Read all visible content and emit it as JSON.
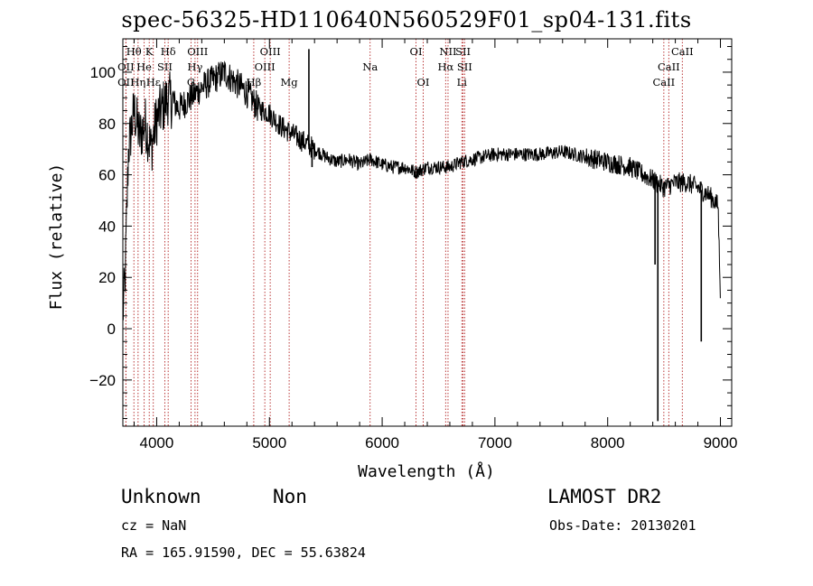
{
  "chart_data": {
    "type": "line",
    "title": "spec-56325-HD110640N560529F01_sp04-131.fits",
    "xlabel": "Wavelength (Å)",
    "ylabel": "Flux (relative)",
    "xlim": [
      3700,
      9100
    ],
    "ylim": [
      -38,
      113
    ],
    "x_ticks": [
      4000,
      5000,
      6000,
      7000,
      8000,
      9000
    ],
    "y_ticks": [
      -20,
      0,
      20,
      40,
      60,
      80,
      100
    ],
    "x_tick_labels": [
      "4000",
      "5000",
      "6000",
      "7000",
      "8000",
      "9000"
    ],
    "y_tick_labels": [
      "−20",
      "0",
      "20",
      "40",
      "60",
      "80",
      "100"
    ],
    "spectrum_anchors": [
      [
        3700,
        5
      ],
      [
        3720,
        20
      ],
      [
        3750,
        70
      ],
      [
        3800,
        85
      ],
      [
        3850,
        75
      ],
      [
        3900,
        80
      ],
      [
        3950,
        70
      ],
      [
        4000,
        82
      ],
      [
        4100,
        90
      ],
      [
        4200,
        86
      ],
      [
        4300,
        90
      ],
      [
        4400,
        94
      ],
      [
        4500,
        97
      ],
      [
        4600,
        100
      ],
      [
        4700,
        96
      ],
      [
        4800,
        92
      ],
      [
        4900,
        86
      ],
      [
        5000,
        84
      ],
      [
        5100,
        79
      ],
      [
        5200,
        76
      ],
      [
        5300,
        73
      ],
      [
        5400,
        70
      ],
      [
        5500,
        67
      ],
      [
        5600,
        65
      ],
      [
        5700,
        66
      ],
      [
        5800,
        64
      ],
      [
        5900,
        66
      ],
      [
        6000,
        64
      ],
      [
        6100,
        63
      ],
      [
        6200,
        63
      ],
      [
        6300,
        61
      ],
      [
        6400,
        63
      ],
      [
        6500,
        63
      ],
      [
        6600,
        63
      ],
      [
        6700,
        65
      ],
      [
        6800,
        66
      ],
      [
        6900,
        67
      ],
      [
        7000,
        68
      ],
      [
        7200,
        68
      ],
      [
        7400,
        68
      ],
      [
        7600,
        69
      ],
      [
        7800,
        67
      ],
      [
        8000,
        65
      ],
      [
        8200,
        63
      ],
      [
        8400,
        58
      ],
      [
        8500,
        55
      ],
      [
        8600,
        57
      ],
      [
        8700,
        57
      ],
      [
        8800,
        55
      ],
      [
        8900,
        52
      ],
      [
        8980,
        48
      ],
      [
        9000,
        10
      ]
    ],
    "spikes": [
      [
        5350,
        109
      ],
      [
        5378,
        63
      ],
      [
        8420,
        25
      ],
      [
        8440,
        53
      ],
      [
        8445,
        -36
      ],
      [
        8830,
        -5
      ]
    ],
    "spectral_lines": [
      {
        "label": "Hθ",
        "wavelength": 3798,
        "row": 1
      },
      {
        "label": "OII",
        "wavelength": 3727,
        "row": 2
      },
      {
        "label": "OII",
        "wavelength": 3727,
        "row": 3
      },
      {
        "label": "Hη",
        "wavelength": 3835,
        "row": 3
      },
      {
        "label": "K",
        "wavelength": 3934,
        "row": 1
      },
      {
        "label": "He",
        "wavelength": 3889,
        "row": 2
      },
      {
        "label": "Hε",
        "wavelength": 3970,
        "row": 3
      },
      {
        "label": "Hδ",
        "wavelength": 4102,
        "row": 1
      },
      {
        "label": "SII",
        "wavelength": 4072,
        "row": 2
      },
      {
        "label": "OIII",
        "wavelength": 4363,
        "row": 1
      },
      {
        "label": "Hγ",
        "wavelength": 4340,
        "row": 2
      },
      {
        "label": "G",
        "wavelength": 4305,
        "row": 3
      },
      {
        "label": "OIII",
        "wavelength": 5007,
        "row": 1
      },
      {
        "label": "OIII",
        "wavelength": 4959,
        "row": 2
      },
      {
        "label": "Hβ",
        "wavelength": 4861,
        "row": 3
      },
      {
        "label": "Mg",
        "wavelength": 5175,
        "row": 3
      },
      {
        "label": "Na",
        "wavelength": 5893,
        "row": 2
      },
      {
        "label": "OI",
        "wavelength": 6300,
        "row": 1
      },
      {
        "label": "OI",
        "wavelength": 6364,
        "row": 3
      },
      {
        "label": "NII",
        "wavelength": 6584,
        "row": 1
      },
      {
        "label": "Hα",
        "wavelength": 6563,
        "row": 2
      },
      {
        "label": "SII",
        "wavelength": 6717,
        "row": 1
      },
      {
        "label": "SII",
        "wavelength": 6731,
        "row": 2
      },
      {
        "label": "Li",
        "wavelength": 6707,
        "row": 3
      },
      {
        "label": "CaII",
        "wavelength": 8662,
        "row": 1
      },
      {
        "label": "CaII",
        "wavelength": 8542,
        "row": 2
      },
      {
        "label": "CaII",
        "wavelength": 8498,
        "row": 3
      }
    ],
    "colors": {
      "spectrum": "#000000",
      "lines": "#b22222",
      "axes": "#000000"
    }
  },
  "footer": {
    "class_label": "Unknown",
    "subclass_label": "Non",
    "survey_label": "LAMOST DR2",
    "cz_text": "cz = NaN",
    "obs_date_text": "Obs-Date: 20130201",
    "coords_text": "RA = 165.91590, DEC =  55.63824"
  }
}
